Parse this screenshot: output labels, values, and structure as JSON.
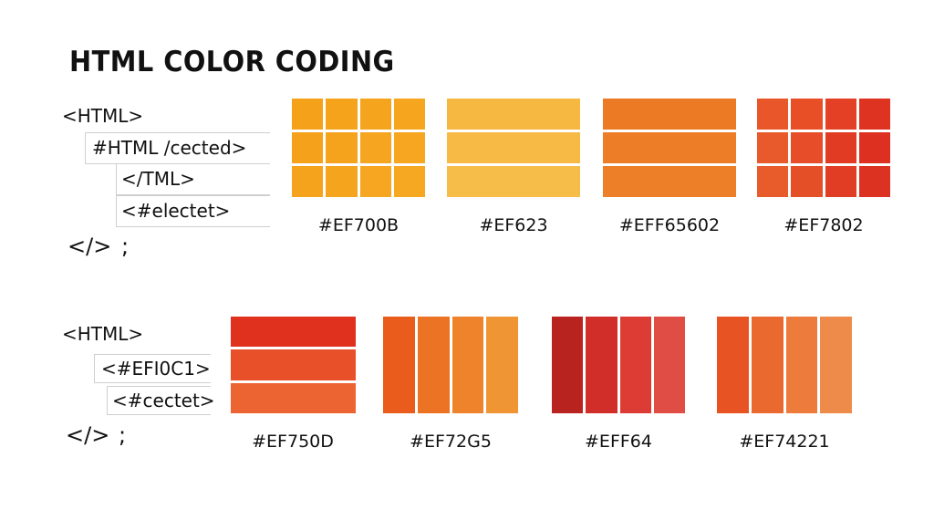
{
  "title": "HTML COLOR CODING",
  "row1": {
    "code": {
      "open": "<HTML>",
      "line1": "#HTML /cected>",
      "line2": "</TML>",
      "line3": "<#electet>",
      "close": "</>",
      "semicolon": ";"
    },
    "swatches": [
      {
        "label": "#EF700B",
        "colors": [
          "#f6a11a",
          "#f6a31c",
          "#f5a41d",
          "#f6a51f",
          "#f6a11b",
          "#f5a31d",
          "#f5a51f",
          "#f6a620",
          "#f5a21c",
          "#f5a41e",
          "#f6a620",
          "#f6a822"
        ]
      },
      {
        "label": "#EF623",
        "colors": [
          "#f7b841",
          "#f7bb45",
          "#f7bd49"
        ]
      },
      {
        "label": "#EFF65602",
        "colors": [
          "#ec7a25",
          "#ed7d27",
          "#ee7f29"
        ]
      },
      {
        "label": "#EF7802",
        "colors": [
          "#e9562a",
          "#e94f27",
          "#e44025",
          "#df3322",
          "#e85a2b",
          "#e64d28",
          "#e23b24",
          "#dd3021",
          "#e85c2c",
          "#e54f28",
          "#e13d24",
          "#dc3221"
        ]
      }
    ]
  },
  "row2": {
    "code": {
      "open": "<HTML>",
      "line1": "<#EFI0C1>",
      "line2": "<#cectet>",
      "close": "</>",
      "semicolon": ";"
    },
    "swatches": [
      {
        "label": "#EF750D",
        "colors": [
          "#e0311f",
          "#e8502a",
          "#ec6431"
        ]
      },
      {
        "label": "#EF72G5",
        "colors": [
          "#e95c1c",
          "#ec7224",
          "#ee832b",
          "#f09533"
        ]
      },
      {
        "label": "#EFF64",
        "colors": [
          "#b8231f",
          "#d12e29",
          "#dc3c34",
          "#e04d45"
        ]
      },
      {
        "label": "#EF74221",
        "colors": [
          "#e85323",
          "#ea692f",
          "#ec7b3c",
          "#ee8b4b"
        ]
      }
    ]
  }
}
